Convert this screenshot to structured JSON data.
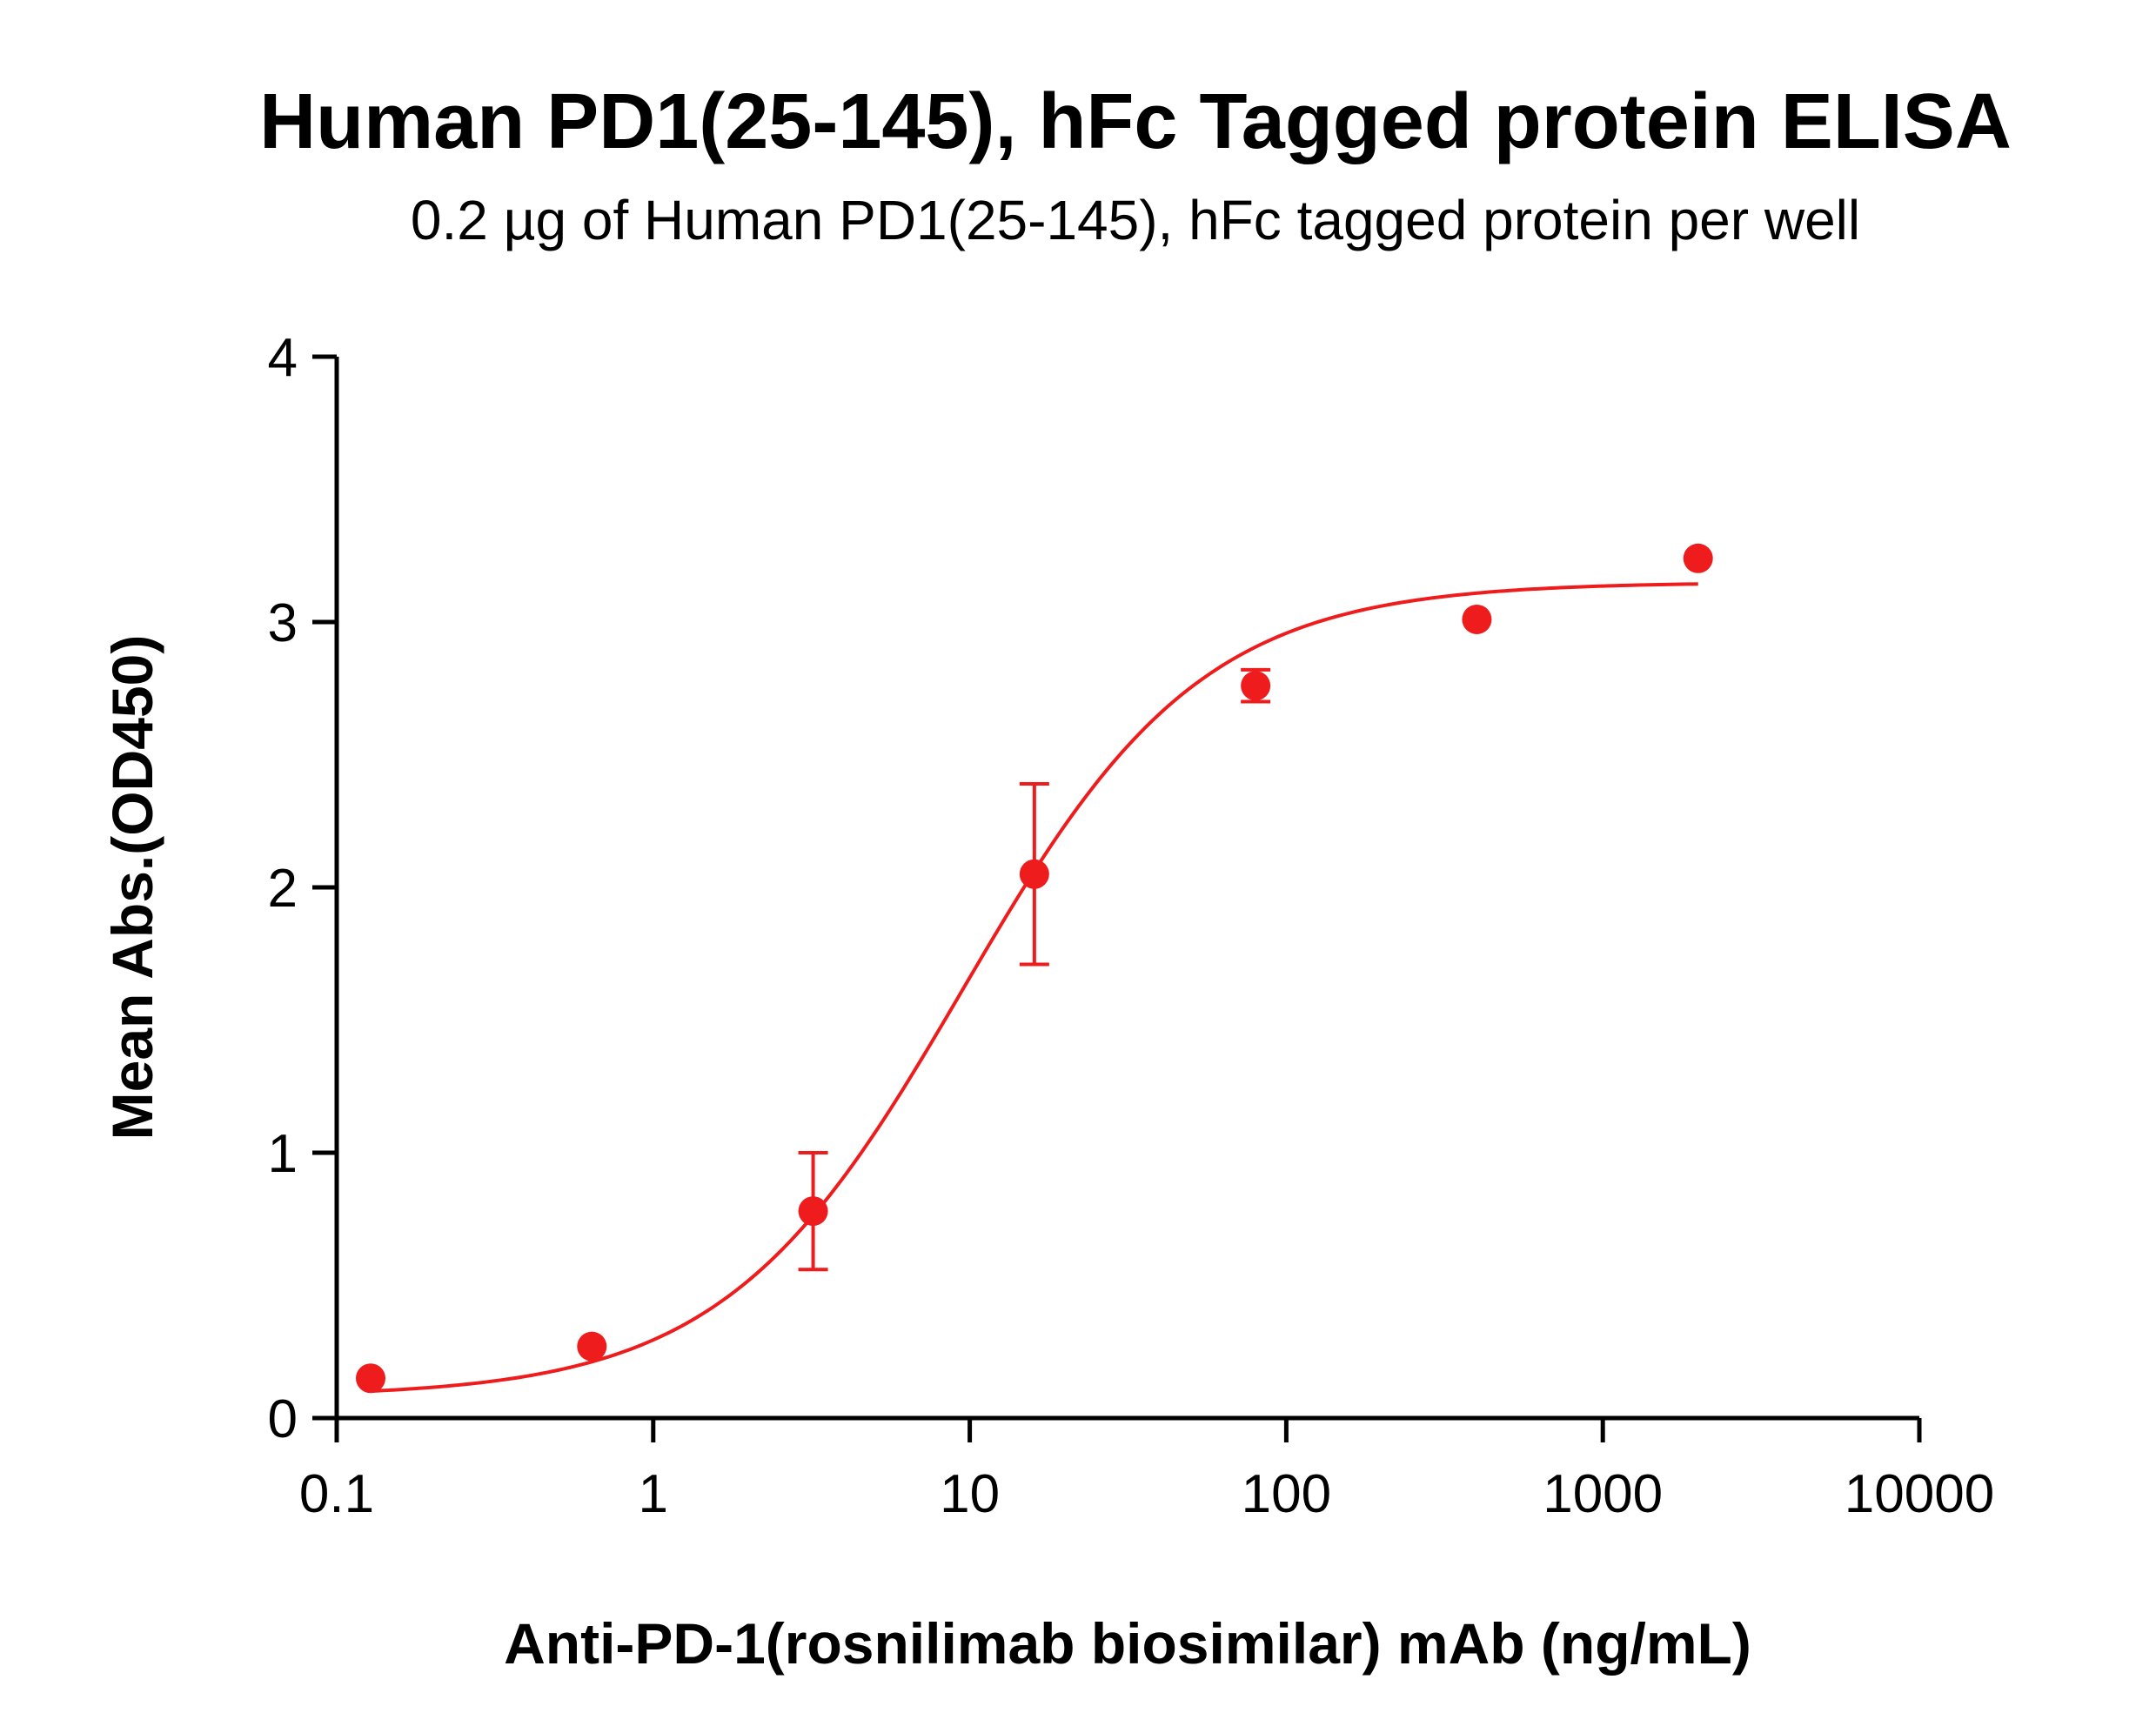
{
  "chart_data": {
    "type": "scatter",
    "title": "Human PD1(25-145), hFc Tagged protein ELISA",
    "subtitle": "0.2 µg of Human PD1(25-145), hFc tagged protein per well",
    "xlabel": "Anti-PD-1(rosnilimab biosimilar) mAb (ng/mL)",
    "ylabel": "Mean Abs.(OD450)",
    "x_scale": "log",
    "xlim": [
      0.1,
      10000
    ],
    "ylim": [
      0,
      4
    ],
    "x_ticks": [
      0.1,
      1,
      10,
      100,
      1000,
      10000
    ],
    "x_tick_labels": [
      "0.1",
      "1",
      "10",
      "100",
      "1000",
      "10000"
    ],
    "y_ticks": [
      0,
      1,
      2,
      3,
      4
    ],
    "y_tick_labels": [
      "0",
      "1",
      "2",
      "3",
      "4"
    ],
    "color": "#ee1c1c",
    "grid": false,
    "series": [
      {
        "x": [
          0.128,
          0.64,
          3.2,
          16,
          80,
          400,
          2000
        ],
        "y": [
          0.15,
          0.27,
          0.78,
          2.05,
          2.76,
          3.01,
          3.24
        ],
        "error": [
          0.0,
          0.0,
          0.22,
          0.34,
          0.06,
          0.0,
          0.0
        ],
        "fit": {
          "model": "4PL",
          "bottom": 0.08,
          "top": 3.15,
          "ec50": 9.5,
          "hill": 1.15,
          "x_range": [
            0.128,
            2000
          ]
        }
      }
    ]
  }
}
